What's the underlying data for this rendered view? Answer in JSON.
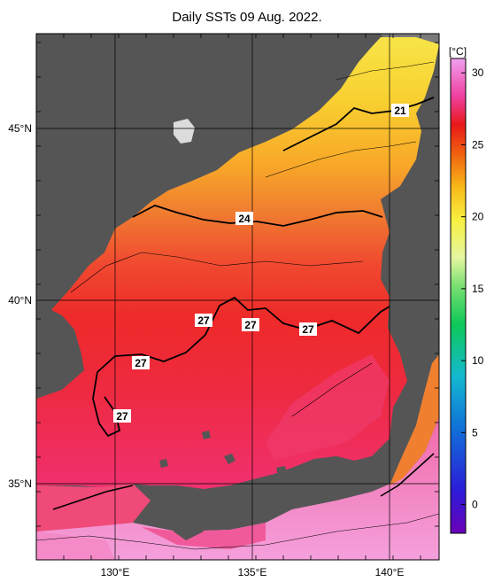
{
  "title": "Daily SSTs 09 Aug. 2022.",
  "colorbar": {
    "unit": "[°C]",
    "ticks": [
      "30",
      "25",
      "20",
      "15",
      "10",
      "5",
      "0"
    ],
    "tick_values": [
      30,
      25,
      20,
      15,
      10,
      5,
      0
    ],
    "range": [
      -2,
      31
    ]
  },
  "lat_labels": [
    {
      "text": "45°N",
      "lat": 45
    },
    {
      "text": "40°N",
      "lat": 40
    },
    {
      "text": "35°N",
      "lat": 35
    }
  ],
  "lon_labels": [
    {
      "text": "130°E",
      "lon": 130
    },
    {
      "text": "135°E",
      "lon": 135
    },
    {
      "text": "140°E",
      "lon": 140
    }
  ],
  "contour_labels": [
    "21",
    "24",
    "27",
    "27",
    "27",
    "27",
    "27"
  ],
  "colors": {
    "land": "#555555",
    "missing": "#7a7a7a"
  }
}
